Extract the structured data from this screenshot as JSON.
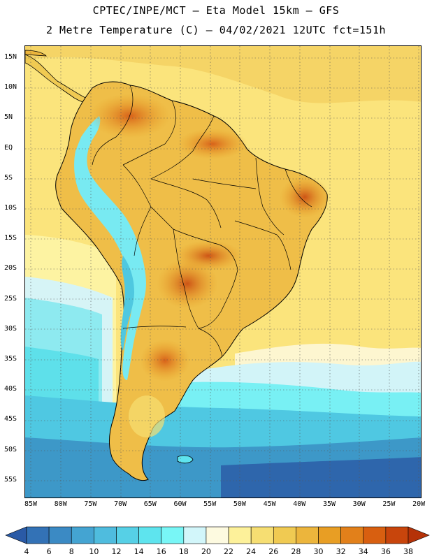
{
  "header": {
    "line1": "CPTEC/INPE/MCT –  Eta Model 15km – GFS",
    "line2": "2 Metre Temperature (C) – 04/02/2021 12UTC fct=151h"
  },
  "axes": {
    "lat_labels": [
      "15N",
      "10N",
      "5N",
      "EQ",
      "5S",
      "10S",
      "15S",
      "20S",
      "25S",
      "30S",
      "35S",
      "40S",
      "45S",
      "50S",
      "55S"
    ],
    "lon_labels": [
      "85W",
      "80W",
      "75W",
      "70W",
      "65W",
      "60W",
      "55W",
      "50W",
      "45W",
      "40W",
      "35W",
      "30W",
      "25W",
      "20W"
    ]
  },
  "legend": {
    "levels": [
      "4",
      "6",
      "8",
      "10",
      "12",
      "14",
      "16",
      "18",
      "20",
      "22",
      "24",
      "26",
      "28",
      "30",
      "32",
      "34",
      "36",
      "38"
    ],
    "colors": [
      "#2a5aa6",
      "#3372b6",
      "#3b8ac4",
      "#44a4d2",
      "#4fbcde",
      "#56d0e6",
      "#5ee4ee",
      "#78f6f6",
      "#d2f6fa",
      "#fdfae0",
      "#fdf19a",
      "#f6de72",
      "#f0ca52",
      "#ecb53c",
      "#e89e24",
      "#e2801a",
      "#d85f10",
      "#c8450c",
      "#b53208"
    ]
  }
}
